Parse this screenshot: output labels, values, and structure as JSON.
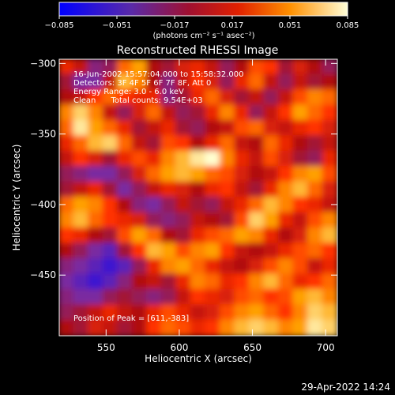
{
  "chart_data": {
    "type": "heatmap",
    "title": "Reconstructed RHESSI Image",
    "xlabel": "Heliocentric X (arcsec)",
    "ylabel": "Heliocentric Y (arcsec)",
    "xlim": [
      518,
      708
    ],
    "ylim": [
      -493,
      -297
    ],
    "x_ticks": [
      550,
      600,
      650,
      700
    ],
    "x_tick_labels": [
      "550",
      "600",
      "650",
      "700"
    ],
    "y_ticks": [
      -300,
      -350,
      -400,
      -450
    ],
    "y_tick_labels": [
      "−300",
      "−350",
      "−400",
      "−450"
    ],
    "colorbar": {
      "range": [
        -0.085,
        0.085
      ],
      "ticks": [
        -0.085,
        -0.051,
        -0.017,
        0.017,
        0.051,
        0.085
      ],
      "tick_labels": [
        "−0.085",
        "−0.051",
        "−0.017",
        "0.017",
        "0.051",
        "0.085"
      ],
      "unit_label": "(photons cm⁻² s⁻¹ asec⁻²)"
    },
    "annotations": [
      "16-Jun-2002 15:57:04.000 to 15:58:32.000",
      "Detectors: 3F 4F 5F 6F 7F 8F, Att 0",
      "Energy Range: 3.0 - 6.0 keV",
      "Clean      Total counts: 9.54E+03"
    ],
    "peak_label": "Position of Peak = [611,-383]",
    "peak": {
      "x": 611,
      "y": -383
    },
    "colors": [
      "#0000ff",
      "#7a2aa0",
      "#b01010",
      "#ff3000",
      "#ffa000",
      "#ffffd0"
    ],
    "intensity_grid": [
      [
        0.55,
        0.45,
        0.25,
        0.3,
        0.7,
        0.8,
        0.4,
        0.35,
        0.5,
        0.55,
        0.45,
        0.3,
        0.4,
        0.65,
        0.6,
        0.35,
        0.5,
        0.4,
        0.3
      ],
      [
        0.35,
        0.2,
        0.2,
        0.45,
        0.85,
        0.75,
        0.4,
        0.25,
        0.45,
        0.6,
        0.5,
        0.3,
        0.55,
        0.7,
        0.45,
        0.3,
        0.45,
        0.35,
        0.4
      ],
      [
        0.4,
        0.45,
        0.6,
        0.7,
        0.6,
        0.55,
        0.55,
        0.25,
        0.35,
        0.55,
        0.7,
        0.5,
        0.35,
        0.45,
        0.3,
        0.45,
        0.65,
        0.75,
        0.7
      ],
      [
        0.75,
        0.9,
        0.75,
        0.45,
        0.3,
        0.5,
        0.7,
        0.45,
        0.3,
        0.35,
        0.55,
        0.75,
        0.55,
        0.3,
        0.45,
        0.6,
        0.8,
        0.7,
        0.6
      ],
      [
        0.7,
        0.95,
        0.8,
        0.7,
        0.55,
        0.35,
        0.45,
        0.55,
        0.35,
        0.3,
        0.4,
        0.45,
        0.65,
        0.7,
        0.5,
        0.45,
        0.55,
        0.6,
        0.5
      ],
      [
        0.55,
        0.7,
        0.85,
        0.9,
        0.7,
        0.45,
        0.35,
        0.65,
        0.6,
        0.4,
        0.55,
        0.7,
        0.45,
        0.4,
        0.7,
        0.55,
        0.4,
        0.35,
        0.45
      ],
      [
        0.45,
        0.6,
        0.5,
        0.35,
        0.55,
        0.65,
        0.55,
        0.75,
        0.85,
        0.95,
        1.0,
        0.75,
        0.55,
        0.45,
        0.65,
        0.5,
        0.35,
        0.3,
        0.55
      ],
      [
        0.3,
        0.25,
        0.2,
        0.2,
        0.3,
        0.5,
        0.7,
        0.8,
        0.85,
        0.8,
        0.7,
        0.65,
        0.5,
        0.4,
        0.45,
        0.6,
        0.75,
        0.8,
        0.65
      ],
      [
        0.35,
        0.45,
        0.55,
        0.35,
        0.2,
        0.3,
        0.45,
        0.55,
        0.5,
        0.4,
        0.55,
        0.6,
        0.45,
        0.35,
        0.55,
        0.75,
        0.85,
        0.7,
        0.5
      ],
      [
        0.7,
        0.8,
        0.75,
        0.6,
        0.4,
        0.25,
        0.2,
        0.3,
        0.45,
        0.35,
        0.3,
        0.45,
        0.55,
        0.7,
        0.85,
        0.75,
        0.6,
        0.55,
        0.45
      ],
      [
        0.75,
        0.85,
        0.7,
        0.6,
        0.55,
        0.5,
        0.3,
        0.25,
        0.3,
        0.45,
        0.4,
        0.35,
        0.65,
        0.9,
        0.8,
        0.55,
        0.45,
        0.65,
        0.75
      ],
      [
        0.6,
        0.55,
        0.4,
        0.35,
        0.65,
        0.8,
        0.7,
        0.4,
        0.35,
        0.55,
        0.65,
        0.7,
        0.8,
        0.75,
        0.55,
        0.4,
        0.5,
        0.75,
        0.85
      ],
      [
        0.4,
        0.3,
        0.2,
        0.15,
        0.35,
        0.6,
        0.85,
        0.8,
        0.65,
        0.75,
        0.8,
        0.6,
        0.45,
        0.4,
        0.45,
        0.55,
        0.65,
        0.7,
        0.6
      ],
      [
        0.25,
        0.2,
        0.15,
        0.1,
        0.15,
        0.3,
        0.55,
        0.75,
        0.8,
        0.7,
        0.55,
        0.45,
        0.4,
        0.5,
        0.65,
        0.75,
        0.65,
        0.45,
        0.55
      ],
      [
        0.2,
        0.15,
        0.1,
        0.15,
        0.25,
        0.4,
        0.45,
        0.35,
        0.55,
        0.75,
        0.7,
        0.55,
        0.6,
        0.75,
        0.85,
        0.7,
        0.55,
        0.6,
        0.7
      ],
      [
        0.25,
        0.2,
        0.2,
        0.3,
        0.35,
        0.3,
        0.25,
        0.3,
        0.45,
        0.6,
        0.55,
        0.5,
        0.65,
        0.7,
        0.6,
        0.65,
        0.8,
        0.85,
        0.75
      ],
      [
        0.3,
        0.35,
        0.45,
        0.55,
        0.45,
        0.4,
        0.55,
        0.65,
        0.55,
        0.45,
        0.5,
        0.65,
        0.75,
        0.8,
        0.7,
        0.6,
        0.75,
        0.9,
        0.85
      ],
      [
        0.4,
        0.35,
        0.5,
        0.45,
        0.35,
        0.4,
        0.6,
        0.7,
        0.65,
        0.55,
        0.6,
        0.75,
        0.85,
        0.9,
        0.85,
        0.75,
        0.8,
        0.95,
        0.9
      ]
    ]
  },
  "footer": {
    "timestamp": "29-Apr-2022 14:24"
  }
}
